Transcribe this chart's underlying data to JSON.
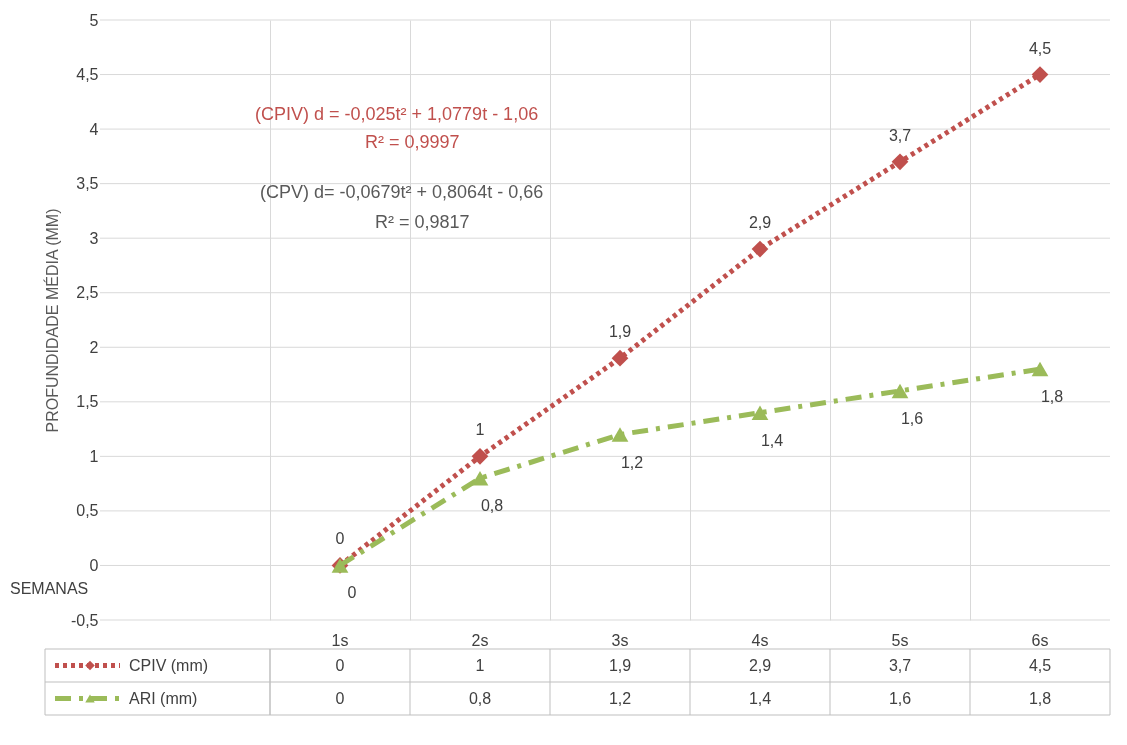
{
  "chart_data": {
    "type": "line",
    "ylabel": "PROFUNDIDADE MÉDIA (MM)",
    "categories": [
      "1s",
      "2s",
      "3s",
      "4s",
      "5s",
      "6s"
    ],
    "ylim": [
      -0.5,
      5
    ],
    "yticks": [
      {
        "value": -0.5,
        "label": "-0,5"
      },
      0,
      {
        "value": 0.5,
        "label": "0,5"
      },
      1,
      {
        "value": 1.5,
        "label": "1,5"
      },
      2,
      {
        "value": 2.5,
        "label": "2,5"
      },
      3,
      {
        "value": 3.5,
        "label": "3,5"
      },
      4,
      {
        "value": 4.5,
        "label": "4,5"
      },
      5
    ],
    "grid": true,
    "legend": "bottom",
    "series": [
      {
        "name": "CPIV (mm)",
        "color": "#c0504d",
        "marker": "diamond",
        "line_style": "dotted",
        "values": [
          0,
          1,
          1.9,
          2.9,
          3.7,
          4.5
        ],
        "value_labels": [
          "0",
          "1",
          "1,9",
          "2,9",
          "3,7",
          "4,5"
        ]
      },
      {
        "name": "ARI (mm)",
        "color": "#9bbb59",
        "marker": "triangle",
        "line_style": "dashed",
        "values": [
          0,
          0.8,
          1.2,
          1.4,
          1.6,
          1.8
        ],
        "value_labels": [
          "0",
          "0,8",
          "1,2",
          "1,4",
          "1,6",
          "1,8"
        ]
      }
    ],
    "annotations": [
      "(CPIV) d = -0,025t² + 1,0779t - 1,06",
      "R² = 0,9997",
      "(CPV)  d= -0,0679t² + 0,8064t - 0,66",
      "R² = 0,9817",
      "SEMANAS"
    ]
  }
}
